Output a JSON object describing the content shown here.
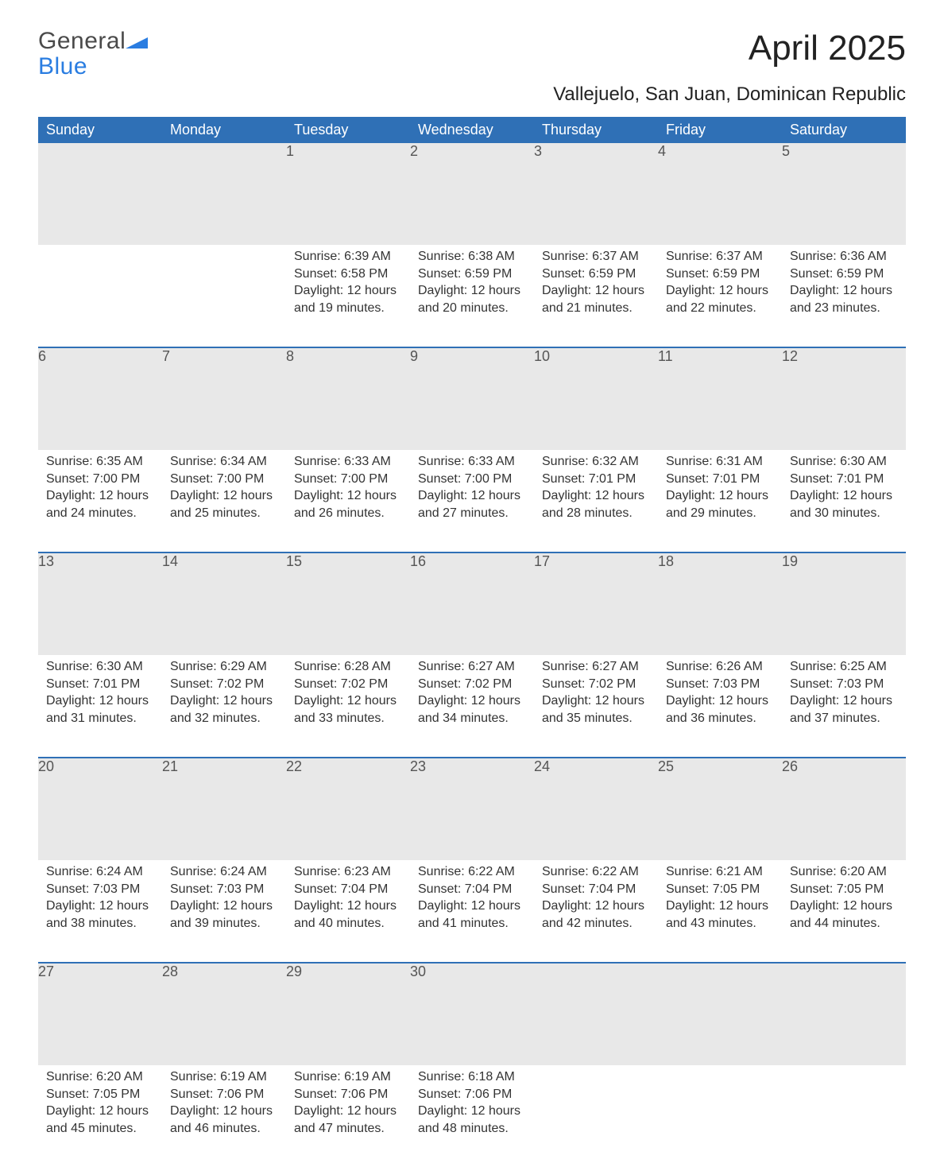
{
  "brand": {
    "general": "General",
    "blue": "Blue",
    "flag_color": "#2a7de1"
  },
  "title": "April 2025",
  "location": "Vallejuelo, San Juan, Dominican Republic",
  "style": {
    "header_bg": "#2f70b6",
    "header_text_color": "#ffffff",
    "daynum_bg": "#e8e8e8",
    "body_text_color": "#333333",
    "page_bg": "#ffffff",
    "font_family": "Arial, Helvetica, sans-serif",
    "title_fontsize_pt": 33,
    "location_fontsize_pt": 18,
    "dayheader_fontsize_pt": 14,
    "body_fontsize_pt": 12
  },
  "day_headers": [
    "Sunday",
    "Monday",
    "Tuesday",
    "Wednesday",
    "Thursday",
    "Friday",
    "Saturday"
  ],
  "labels": {
    "sunrise": "Sunrise:",
    "sunset": "Sunset:",
    "daylight": "Daylight:"
  },
  "weeks": [
    [
      null,
      null,
      {
        "n": "1",
        "sunrise": "6:39 AM",
        "sunset": "6:58 PM",
        "daylight": "12 hours and 19 minutes."
      },
      {
        "n": "2",
        "sunrise": "6:38 AM",
        "sunset": "6:59 PM",
        "daylight": "12 hours and 20 minutes."
      },
      {
        "n": "3",
        "sunrise": "6:37 AM",
        "sunset": "6:59 PM",
        "daylight": "12 hours and 21 minutes."
      },
      {
        "n": "4",
        "sunrise": "6:37 AM",
        "sunset": "6:59 PM",
        "daylight": "12 hours and 22 minutes."
      },
      {
        "n": "5",
        "sunrise": "6:36 AM",
        "sunset": "6:59 PM",
        "daylight": "12 hours and 23 minutes."
      }
    ],
    [
      {
        "n": "6",
        "sunrise": "6:35 AM",
        "sunset": "7:00 PM",
        "daylight": "12 hours and 24 minutes."
      },
      {
        "n": "7",
        "sunrise": "6:34 AM",
        "sunset": "7:00 PM",
        "daylight": "12 hours and 25 minutes."
      },
      {
        "n": "8",
        "sunrise": "6:33 AM",
        "sunset": "7:00 PM",
        "daylight": "12 hours and 26 minutes."
      },
      {
        "n": "9",
        "sunrise": "6:33 AM",
        "sunset": "7:00 PM",
        "daylight": "12 hours and 27 minutes."
      },
      {
        "n": "10",
        "sunrise": "6:32 AM",
        "sunset": "7:01 PM",
        "daylight": "12 hours and 28 minutes."
      },
      {
        "n": "11",
        "sunrise": "6:31 AM",
        "sunset": "7:01 PM",
        "daylight": "12 hours and 29 minutes."
      },
      {
        "n": "12",
        "sunrise": "6:30 AM",
        "sunset": "7:01 PM",
        "daylight": "12 hours and 30 minutes."
      }
    ],
    [
      {
        "n": "13",
        "sunrise": "6:30 AM",
        "sunset": "7:01 PM",
        "daylight": "12 hours and 31 minutes."
      },
      {
        "n": "14",
        "sunrise": "6:29 AM",
        "sunset": "7:02 PM",
        "daylight": "12 hours and 32 minutes."
      },
      {
        "n": "15",
        "sunrise": "6:28 AM",
        "sunset": "7:02 PM",
        "daylight": "12 hours and 33 minutes."
      },
      {
        "n": "16",
        "sunrise": "6:27 AM",
        "sunset": "7:02 PM",
        "daylight": "12 hours and 34 minutes."
      },
      {
        "n": "17",
        "sunrise": "6:27 AM",
        "sunset": "7:02 PM",
        "daylight": "12 hours and 35 minutes."
      },
      {
        "n": "18",
        "sunrise": "6:26 AM",
        "sunset": "7:03 PM",
        "daylight": "12 hours and 36 minutes."
      },
      {
        "n": "19",
        "sunrise": "6:25 AM",
        "sunset": "7:03 PM",
        "daylight": "12 hours and 37 minutes."
      }
    ],
    [
      {
        "n": "20",
        "sunrise": "6:24 AM",
        "sunset": "7:03 PM",
        "daylight": "12 hours and 38 minutes."
      },
      {
        "n": "21",
        "sunrise": "6:24 AM",
        "sunset": "7:03 PM",
        "daylight": "12 hours and 39 minutes."
      },
      {
        "n": "22",
        "sunrise": "6:23 AM",
        "sunset": "7:04 PM",
        "daylight": "12 hours and 40 minutes."
      },
      {
        "n": "23",
        "sunrise": "6:22 AM",
        "sunset": "7:04 PM",
        "daylight": "12 hours and 41 minutes."
      },
      {
        "n": "24",
        "sunrise": "6:22 AM",
        "sunset": "7:04 PM",
        "daylight": "12 hours and 42 minutes."
      },
      {
        "n": "25",
        "sunrise": "6:21 AM",
        "sunset": "7:05 PM",
        "daylight": "12 hours and 43 minutes."
      },
      {
        "n": "26",
        "sunrise": "6:20 AM",
        "sunset": "7:05 PM",
        "daylight": "12 hours and 44 minutes."
      }
    ],
    [
      {
        "n": "27",
        "sunrise": "6:20 AM",
        "sunset": "7:05 PM",
        "daylight": "12 hours and 45 minutes."
      },
      {
        "n": "28",
        "sunrise": "6:19 AM",
        "sunset": "7:06 PM",
        "daylight": "12 hours and 46 minutes."
      },
      {
        "n": "29",
        "sunrise": "6:19 AM",
        "sunset": "7:06 PM",
        "daylight": "12 hours and 47 minutes."
      },
      {
        "n": "30",
        "sunrise": "6:18 AM",
        "sunset": "7:06 PM",
        "daylight": "12 hours and 48 minutes."
      },
      null,
      null,
      null
    ]
  ]
}
